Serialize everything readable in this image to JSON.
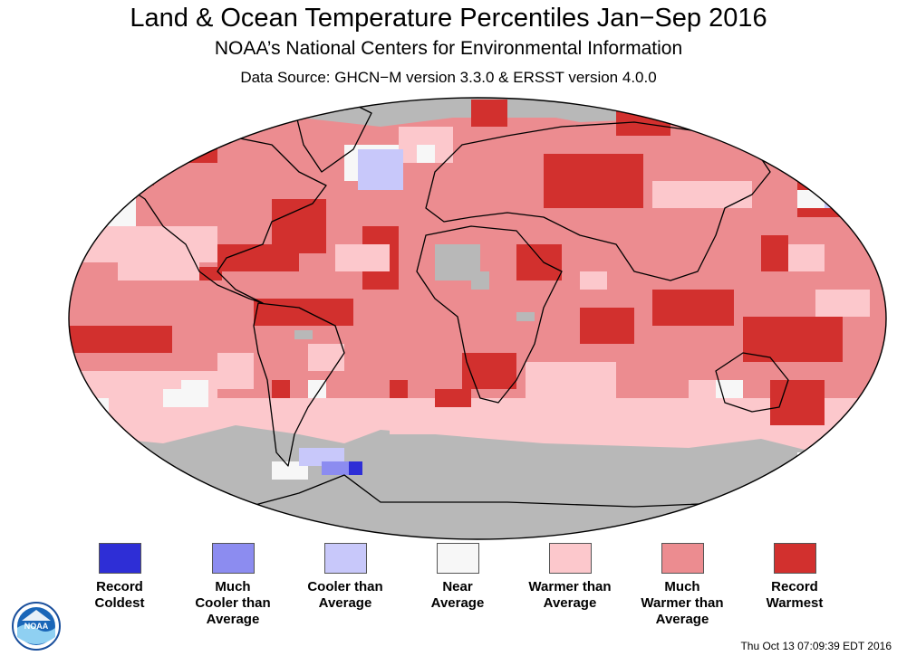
{
  "header": {
    "title": "Land & Ocean Temperature Percentiles Jan−Sep 2016",
    "subtitle": "NOAA’s National Centers for Environmental Information",
    "source": "Data Source: GHCN−M version 3.3.0 & ERSST version 4.0.0"
  },
  "colors": {
    "no_data": "#b8b8b8",
    "outline": "#000000"
  },
  "legend": [
    {
      "lines": [
        "Record",
        "Coldest"
      ],
      "color": "#2e2ed6"
    },
    {
      "lines": [
        "Much",
        "Cooler than",
        "Average"
      ],
      "color": "#8c8cf0"
    },
    {
      "lines": [
        "Cooler than",
        "Average"
      ],
      "color": "#c8c8fa"
    },
    {
      "lines": [
        "Near",
        "Average"
      ],
      "color": "#f7f7f7"
    },
    {
      "lines": [
        "Warmer than",
        "Average"
      ],
      "color": "#fcc8cc"
    },
    {
      "lines": [
        "Much",
        "Warmer than",
        "Average"
      ],
      "color": "#ec8c90"
    },
    {
      "lines": [
        "Record",
        "Warmest"
      ],
      "color": "#d2302e"
    }
  ],
  "logo": {
    "text": "NOAA"
  },
  "timestamp": "Thu Oct 13 07:09:39 EDT 2016"
}
